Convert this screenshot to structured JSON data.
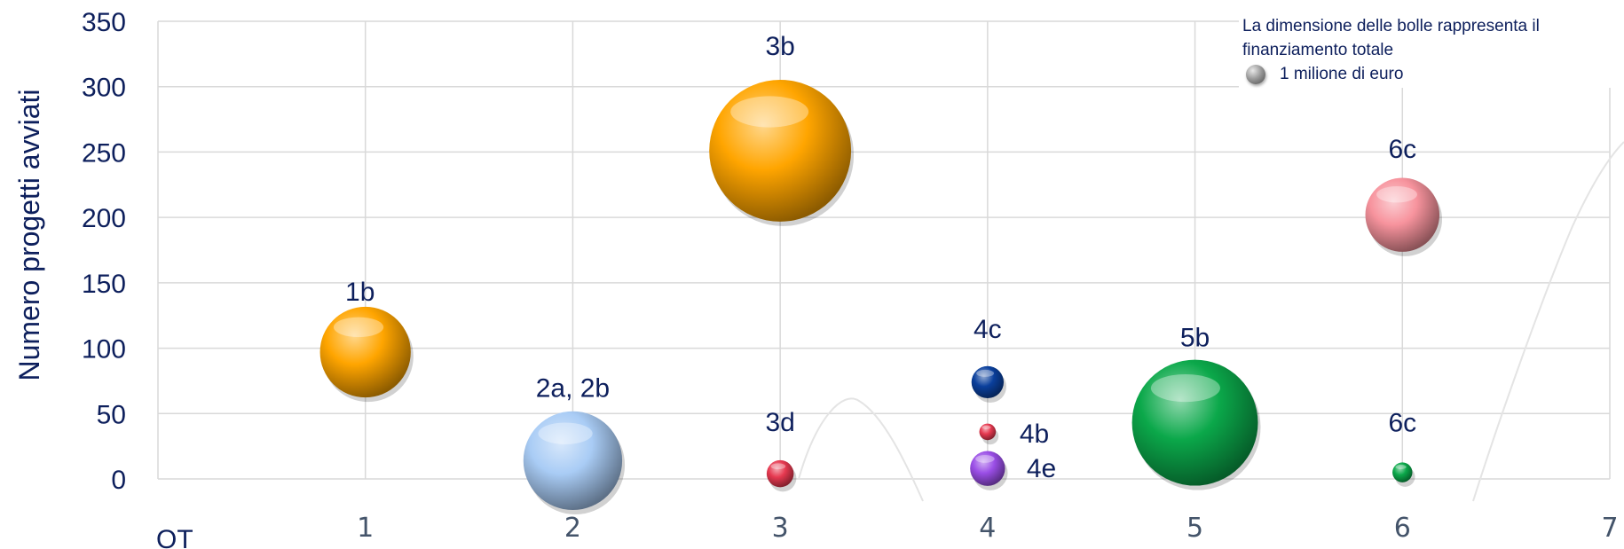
{
  "chart_data": {
    "type": "scatter",
    "subtype": "bubble",
    "xlabel": "OT",
    "ylabel": "Numero progetti avviati",
    "xlim": [
      0,
      7
    ],
    "ylim": [
      0,
      350
    ],
    "xticks": [
      1,
      2,
      3,
      4,
      5,
      6,
      7
    ],
    "yticks": [
      0,
      50,
      100,
      150,
      200,
      250,
      300,
      350
    ],
    "grid": true,
    "legend": {
      "placement": "top-right",
      "text": "La dimensione delle bolle rappresenta il finanziamento totale",
      "reference_label": "1 milione di euro",
      "reference_color": "#808080"
    },
    "points": [
      {
        "label": "1b",
        "x": 1,
        "y": 97,
        "size": 1.35,
        "color": "#ffa500"
      },
      {
        "label": "2a, 2b",
        "x": 2,
        "y": 14,
        "size": 1.6,
        "color": "#a9ccf5"
      },
      {
        "label": "3b",
        "x": 3,
        "y": 251,
        "size": 3.3,
        "color": "#ffa500"
      },
      {
        "label": "3d",
        "x": 3,
        "y": 4,
        "size": 0.12,
        "color": "#e63950"
      },
      {
        "label": "4c",
        "x": 4,
        "y": 74,
        "size": 0.17,
        "color": "#0a3f9c"
      },
      {
        "label": "4b",
        "x": 4,
        "y": 36,
        "size": 0.045,
        "color": "#e63950"
      },
      {
        "label": "4e",
        "x": 4,
        "y": 8,
        "size": 0.2,
        "color": "#9a4ee6"
      },
      {
        "label": "5b",
        "x": 5,
        "y": 43,
        "size": 2.6,
        "color": "#0ba84a"
      },
      {
        "label": "6c",
        "x": 6,
        "y": 202,
        "size": 0.9,
        "color": "#f7939d"
      },
      {
        "label": "6c",
        "x": 6,
        "y": 5,
        "size": 0.065,
        "color": "#0ba84a"
      }
    ]
  },
  "colors": {
    "text": "#0d1f5c",
    "grid": "#d9d9d9",
    "axis_ticks": "#44546a"
  }
}
